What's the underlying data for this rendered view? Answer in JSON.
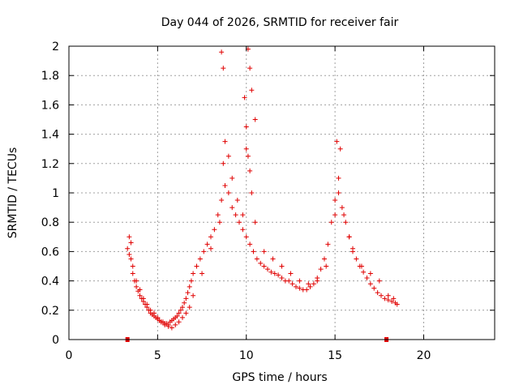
{
  "chart_data": {
    "type": "scatter",
    "title": "Day 044 of 2026, SRMTID for receiver fair",
    "xlabel": "GPS time / hours",
    "ylabel": "SRMTID / TECUs",
    "xlim": [
      0,
      24
    ],
    "ylim": [
      0,
      2
    ],
    "xticks": [
      0,
      5,
      10,
      15,
      20
    ],
    "yticks": [
      0,
      0.2,
      0.4,
      0.6,
      0.8,
      1,
      1.2,
      1.4,
      1.6,
      1.8,
      2
    ],
    "xtick_labels": [
      "0",
      "5",
      "10",
      "15",
      "20"
    ],
    "ytick_labels": [
      "0",
      "0.2",
      "0.4",
      "0.6",
      "0.8",
      "1",
      "1.2",
      "1.4",
      "1.6",
      "1.8",
      "2"
    ],
    "grid": true,
    "marker": "plus",
    "color": "#e00000",
    "baseline_markers": [
      3.3,
      17.9
    ],
    "series": [
      {
        "name": "SRMTID",
        "x": [
          3.3,
          3.4,
          3.5,
          3.6,
          3.7,
          3.8,
          3.9,
          4.0,
          4.1,
          4.2,
          4.3,
          4.4,
          4.5,
          4.6,
          4.7,
          4.8,
          4.9,
          5.0,
          5.1,
          5.2,
          5.3,
          5.4,
          5.5,
          5.6,
          5.7,
          5.8,
          5.9,
          6.0,
          6.1,
          6.2,
          6.3,
          6.4,
          6.5,
          6.6,
          6.7,
          6.8,
          6.9,
          7.0,
          7.2,
          7.4,
          7.6,
          7.8,
          8.0,
          8.2,
          8.4,
          8.6,
          8.8,
          9.0,
          9.2,
          9.4,
          9.6,
          9.8,
          10.0,
          10.2,
          10.4,
          10.6,
          10.8,
          11.0,
          11.2,
          11.4,
          11.6,
          11.8,
          12.0,
          12.2,
          12.4,
          12.6,
          12.8,
          13.0,
          13.2,
          13.4,
          13.6,
          13.8,
          14.0,
          14.2,
          14.4,
          14.6,
          14.8,
          15.0,
          15.2,
          15.4,
          15.6,
          15.8,
          16.0,
          16.2,
          16.4,
          16.6,
          16.8,
          17.0,
          17.2,
          17.4,
          17.6,
          17.8,
          18.0,
          18.2,
          18.4,
          18.5,
          3.4,
          3.5,
          3.6,
          3.8,
          4.0,
          4.2,
          4.4,
          4.6,
          4.8,
          5.0,
          5.2,
          5.4,
          5.6,
          5.8,
          6.0,
          6.2,
          6.4,
          6.6,
          6.8,
          7.0,
          7.5,
          8.0,
          8.5,
          8.7,
          8.8,
          9.0,
          9.2,
          9.5,
          9.8,
          10.0,
          10.1,
          10.2,
          10.3,
          10.5,
          11.0,
          11.5,
          12.0,
          12.5,
          13.0,
          13.5,
          14.0,
          14.5,
          15.0,
          15.2,
          15.5,
          15.8,
          16.0,
          16.5,
          17.0,
          17.5,
          18.0,
          18.3,
          8.6,
          8.7,
          9.9,
          10.0,
          10.1,
          10.2,
          10.3,
          10.5,
          15.1,
          15.3
        ],
        "y": [
          0.62,
          0.7,
          0.55,
          0.45,
          0.4,
          0.36,
          0.33,
          0.3,
          0.28,
          0.26,
          0.24,
          0.22,
          0.2,
          0.18,
          0.17,
          0.16,
          0.15,
          0.14,
          0.13,
          0.12,
          0.12,
          0.11,
          0.11,
          0.1,
          0.12,
          0.13,
          0.14,
          0.15,
          0.16,
          0.18,
          0.2,
          0.22,
          0.25,
          0.28,
          0.32,
          0.36,
          0.4,
          0.45,
          0.5,
          0.55,
          0.6,
          0.65,
          0.7,
          0.75,
          0.85,
          0.95,
          1.05,
          1.0,
          0.9,
          0.85,
          0.8,
          0.75,
          0.7,
          0.65,
          0.6,
          0.55,
          0.52,
          0.5,
          0.48,
          0.46,
          0.45,
          0.44,
          0.42,
          0.4,
          0.4,
          0.38,
          0.36,
          0.35,
          0.34,
          0.34,
          0.36,
          0.38,
          0.42,
          0.48,
          0.55,
          0.65,
          0.8,
          0.95,
          1.1,
          0.9,
          0.8,
          0.7,
          0.62,
          0.55,
          0.5,
          0.46,
          0.42,
          0.38,
          0.35,
          0.32,
          0.3,
          0.28,
          0.27,
          0.26,
          0.25,
          0.24,
          0.58,
          0.66,
          0.5,
          0.4,
          0.34,
          0.28,
          0.24,
          0.2,
          0.18,
          0.15,
          0.12,
          0.1,
          0.09,
          0.08,
          0.1,
          0.12,
          0.15,
          0.18,
          0.22,
          0.3,
          0.45,
          0.62,
          0.8,
          1.2,
          1.35,
          1.25,
          1.1,
          0.95,
          0.85,
          1.3,
          1.25,
          1.15,
          1.0,
          0.8,
          0.6,
          0.55,
          0.5,
          0.45,
          0.4,
          0.38,
          0.4,
          0.5,
          0.85,
          1.0,
          0.85,
          0.7,
          0.6,
          0.5,
          0.45,
          0.4,
          0.3,
          0.28,
          1.96,
          1.85,
          1.65,
          1.45,
          1.98,
          1.85,
          1.7,
          1.5,
          1.35,
          1.3
        ]
      }
    ]
  }
}
